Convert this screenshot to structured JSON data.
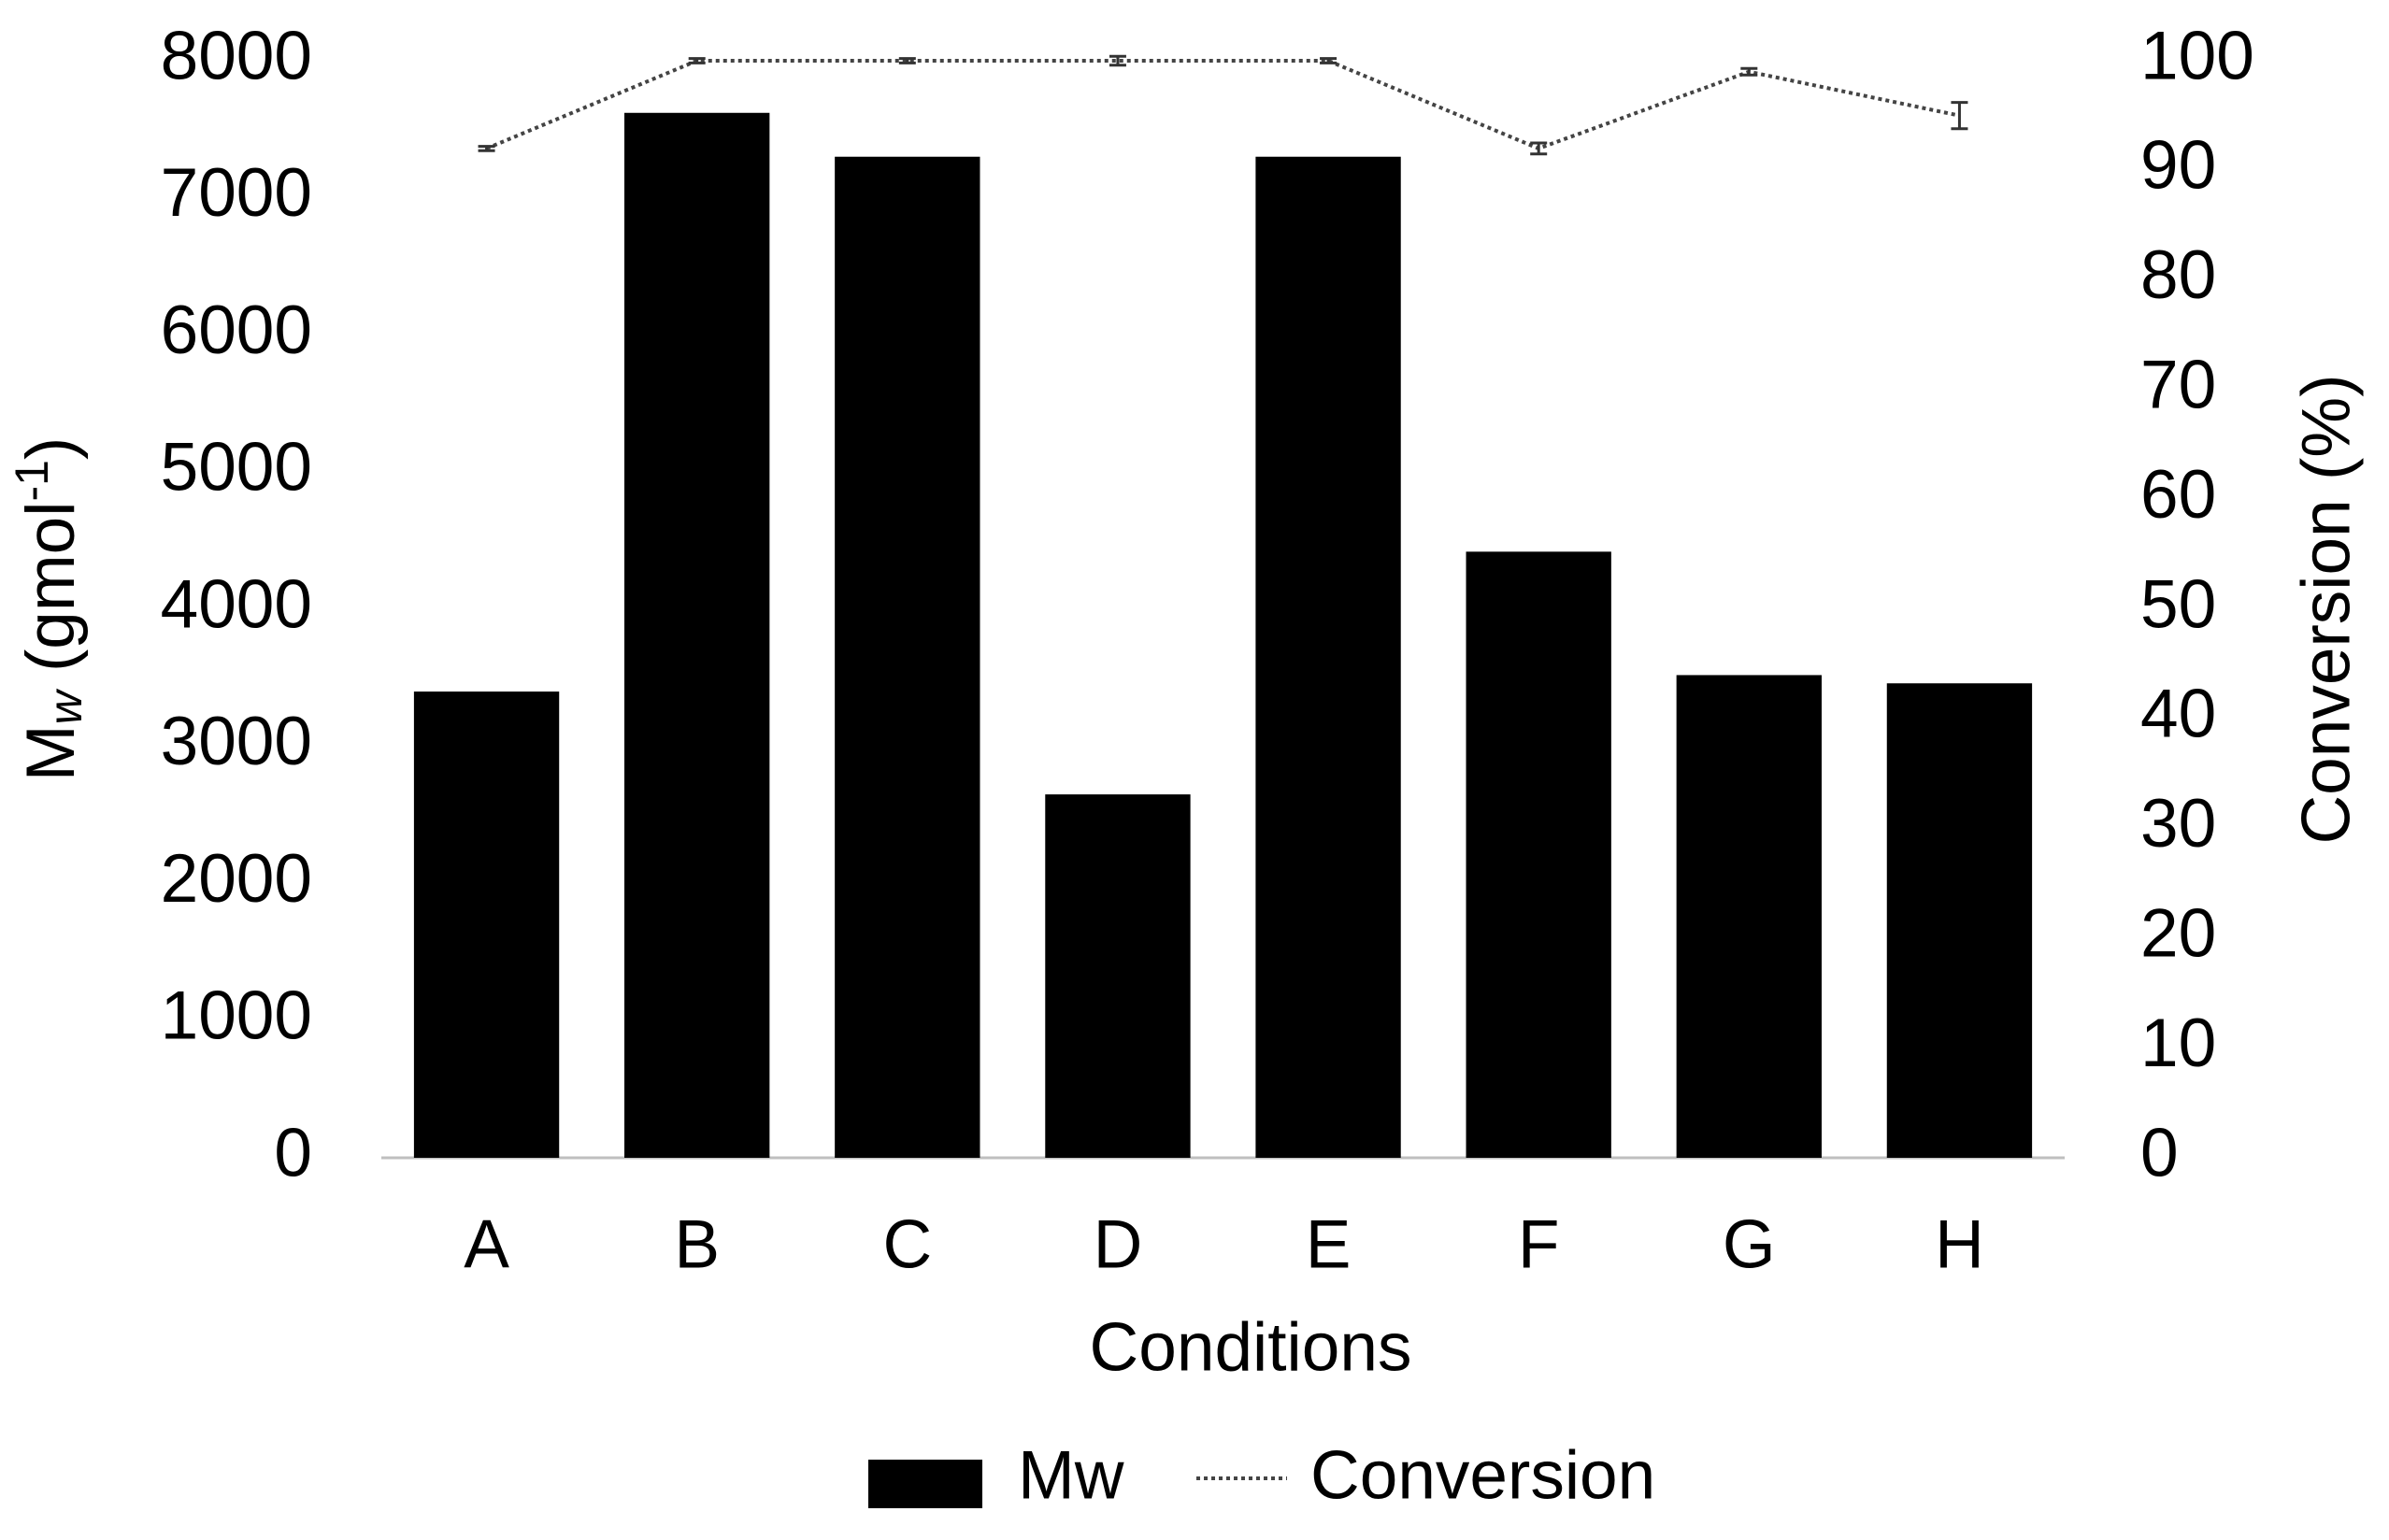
{
  "chart_data": {
    "type": "bar_line",
    "x_label": "Conditions",
    "y_label": {
      "main": "M",
      "sub": "w",
      "rest": " (gmol",
      "sup": "-1",
      "end": ")"
    },
    "y2_label": "Conversion (%)",
    "categories": [
      "A",
      "B",
      "C",
      "D",
      "E",
      "F",
      "G",
      "H"
    ],
    "series": [
      {
        "name": "Mw",
        "type": "bar",
        "color": "#000000",
        "values": [
          3400,
          7620,
          7300,
          2650,
          7300,
          4420,
          3520,
          3460
        ]
      },
      {
        "name": "Conversion",
        "type": "line",
        "axis": "y2",
        "color": "#444444",
        "values": [
          92,
          100,
          100,
          100,
          100,
          92,
          99,
          95
        ],
        "errors": [
          0.2,
          0.2,
          0.2,
          0.4,
          0.2,
          0.5,
          0.3,
          1.2
        ]
      }
    ],
    "ylim": [
      0,
      8000
    ],
    "yticks": [
      0,
      1000,
      2000,
      3000,
      4000,
      5000,
      6000,
      7000,
      8000
    ],
    "y2lim": [
      0,
      100
    ],
    "y2ticks": [
      0,
      10,
      20,
      30,
      40,
      50,
      60,
      70,
      80,
      90,
      100
    ],
    "legend": "bottom"
  }
}
